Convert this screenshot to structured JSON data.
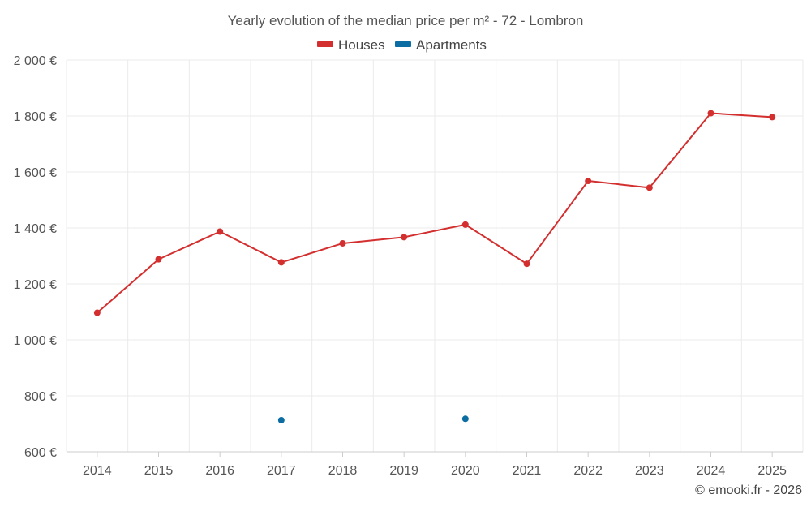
{
  "chart_data": {
    "type": "line",
    "title": "Yearly evolution of the median price per m² - 72 - Lombron",
    "categories": [
      "2014",
      "2015",
      "2016",
      "2017",
      "2018",
      "2019",
      "2020",
      "2021",
      "2022",
      "2023",
      "2024",
      "2025"
    ],
    "ylim": [
      600,
      2000
    ],
    "y_ticks": [
      600,
      800,
      1000,
      1200,
      1400,
      1600,
      1800,
      2000
    ],
    "y_tick_labels": [
      "600 €",
      "800 €",
      "1 000 €",
      "1 200 €",
      "1 400 €",
      "1 600 €",
      "1 800 €",
      "2 000 €"
    ],
    "grid": true,
    "legend_position": "top-center",
    "series": [
      {
        "name": "Houses",
        "color": "#d32f2f",
        "values": [
          1097,
          1288,
          1387,
          1277,
          1345,
          1367,
          1412,
          1272,
          1568,
          1544,
          1810,
          1796
        ]
      },
      {
        "name": "Apartments",
        "color": "#0b6da1",
        "values": [
          null,
          null,
          null,
          713,
          null,
          null,
          718,
          null,
          null,
          null,
          null,
          null
        ]
      }
    ],
    "credit": "© emooki.fr - 2026"
  }
}
